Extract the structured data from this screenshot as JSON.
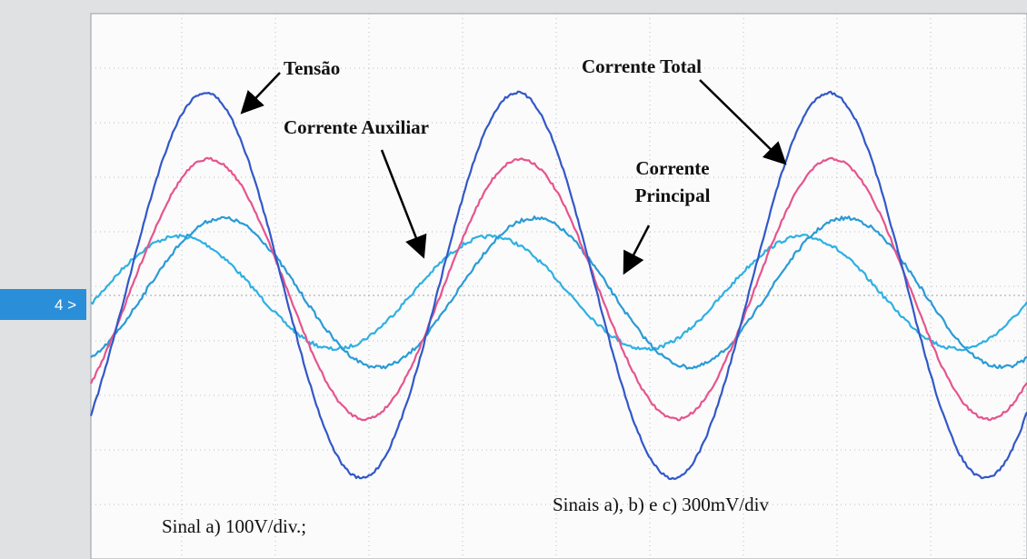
{
  "annotations": {
    "tensao": "Tensão",
    "corrente_total": "Corrente Total",
    "corrente_auxiliar": "Corrente Auxiliar",
    "corrente_principal": [
      "Corrente",
      "Principal"
    ]
  },
  "captions": {
    "sinal_a": "Sinal a) 100V/div.;",
    "sinais_abc": "Sinais  a), b) e c)  300mV/div"
  },
  "channel_marker": "4 >"
}
